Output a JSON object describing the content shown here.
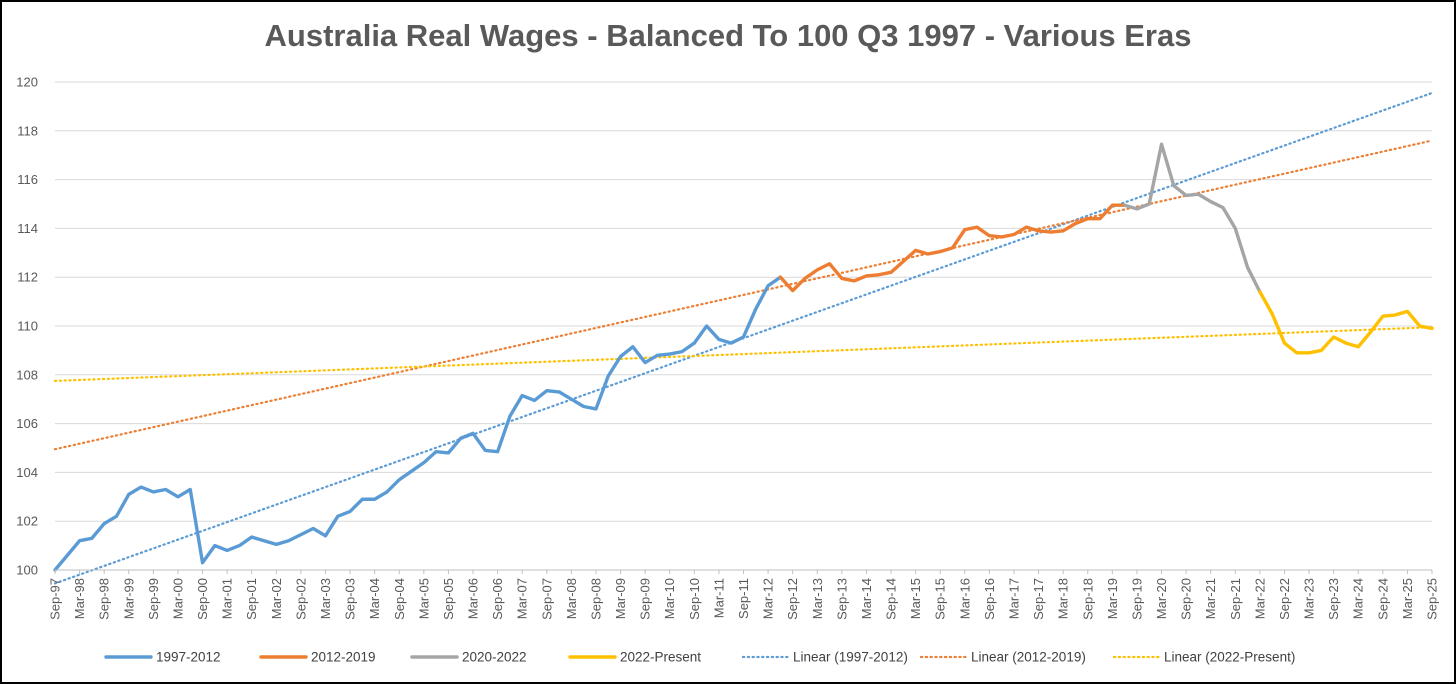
{
  "chart_data": {
    "type": "line",
    "title": "Australia Real Wages - Balanced To 100 Q3 1997 - Various Eras",
    "xlabel": "",
    "ylabel": "",
    "ylim": [
      100,
      120
    ],
    "y_ticks": [
      100,
      102,
      104,
      106,
      108,
      110,
      112,
      114,
      116,
      118,
      120
    ],
    "grid": true,
    "legend_position": "bottom",
    "x_tick_labels": [
      "Sep-97",
      "Mar-98",
      "Sep-98",
      "Mar-99",
      "Sep-99",
      "Mar-00",
      "Sep-00",
      "Mar-01",
      "Sep-01",
      "Mar-02",
      "Sep-02",
      "Mar-03",
      "Sep-03",
      "Mar-04",
      "Sep-04",
      "Mar-05",
      "Sep-05",
      "Mar-06",
      "Sep-06",
      "Mar-07",
      "Sep-07",
      "Mar-08",
      "Sep-08",
      "Mar-09",
      "Sep-09",
      "Mar-10",
      "Sep-10",
      "Mar-11",
      "Sep-11",
      "Mar-12",
      "Sep-12",
      "Mar-13",
      "Sep-13",
      "Mar-14",
      "Sep-14",
      "Mar-15",
      "Sep-15",
      "Mar-16",
      "Sep-16",
      "Mar-17",
      "Sep-17",
      "Mar-18",
      "Sep-18",
      "Mar-19",
      "Sep-19",
      "Mar-20",
      "Sep-20",
      "Mar-21",
      "Sep-21",
      "Mar-22",
      "Sep-22",
      "Mar-23",
      "Sep-23",
      "Mar-24",
      "Sep-24",
      "Mar-25",
      "Sep-25"
    ],
    "quarters_count": 113,
    "series": [
      {
        "name": "1997-2012",
        "color": "#5b9bd5",
        "style": "solid",
        "start_index": 0,
        "values": [
          100.0,
          100.6,
          101.2,
          101.3,
          101.9,
          102.2,
          103.1,
          103.4,
          103.2,
          103.3,
          103.0,
          103.3,
          100.3,
          101.0,
          100.8,
          101.0,
          101.35,
          101.2,
          101.05,
          101.2,
          101.45,
          101.7,
          101.4,
          102.2,
          102.4,
          102.9,
          102.9,
          103.2,
          103.7,
          104.05,
          104.4,
          104.85,
          104.8,
          105.4,
          105.6,
          104.9,
          104.85,
          106.3,
          107.15,
          106.95,
          107.35,
          107.3,
          107.0,
          106.7,
          106.6,
          107.95,
          108.75,
          109.15,
          108.5,
          108.8,
          108.85,
          108.95,
          109.3,
          110.0,
          109.45,
          109.3,
          109.55,
          110.7,
          111.65,
          112.0
        ]
      },
      {
        "name": "2012-2019",
        "color": "#ed7d31",
        "style": "solid",
        "start_index": 59,
        "values": [
          112.0,
          111.45,
          111.95,
          112.3,
          112.55,
          111.95,
          111.85,
          112.05,
          112.1,
          112.2,
          112.65,
          113.1,
          112.95,
          113.05,
          113.2,
          113.95,
          114.05,
          113.7,
          113.65,
          113.75,
          114.05,
          113.9,
          113.85,
          113.9,
          114.2,
          114.4,
          114.4,
          114.95,
          114.95
        ]
      },
      {
        "name": "2020-2022",
        "color": "#a5a5a5",
        "style": "solid",
        "start_index": 87,
        "values": [
          114.95,
          114.8,
          115.0,
          117.45,
          115.75,
          115.35,
          115.4,
          115.1,
          114.85,
          114.0,
          112.4,
          111.4
        ]
      },
      {
        "name": "2022-Present",
        "color": "#ffc000",
        "style": "solid",
        "start_index": 98,
        "values": [
          111.4,
          110.5,
          109.3,
          108.9,
          108.9,
          109.0,
          109.55,
          109.3,
          109.15,
          109.75,
          110.4,
          110.45,
          110.6,
          110.0,
          109.9
        ]
      },
      {
        "name": "Linear (1997-2012)",
        "color": "#5b9bd5",
        "style": "dotted",
        "start_index": 0,
        "end_index": 112,
        "trend_start_value": 99.45,
        "trend_end_value": 119.55
      },
      {
        "name": "Linear (2012-2019)",
        "color": "#ed7d31",
        "style": "dotted",
        "start_index": 0,
        "end_index": 112,
        "trend_start_value": 104.95,
        "trend_end_value": 117.6
      },
      {
        "name": "Linear (2022-Present)",
        "color": "#ffc000",
        "style": "dotted",
        "start_index": 0,
        "end_index": 112,
        "trend_start_value": 107.75,
        "trend_end_value": 109.95
      }
    ]
  }
}
